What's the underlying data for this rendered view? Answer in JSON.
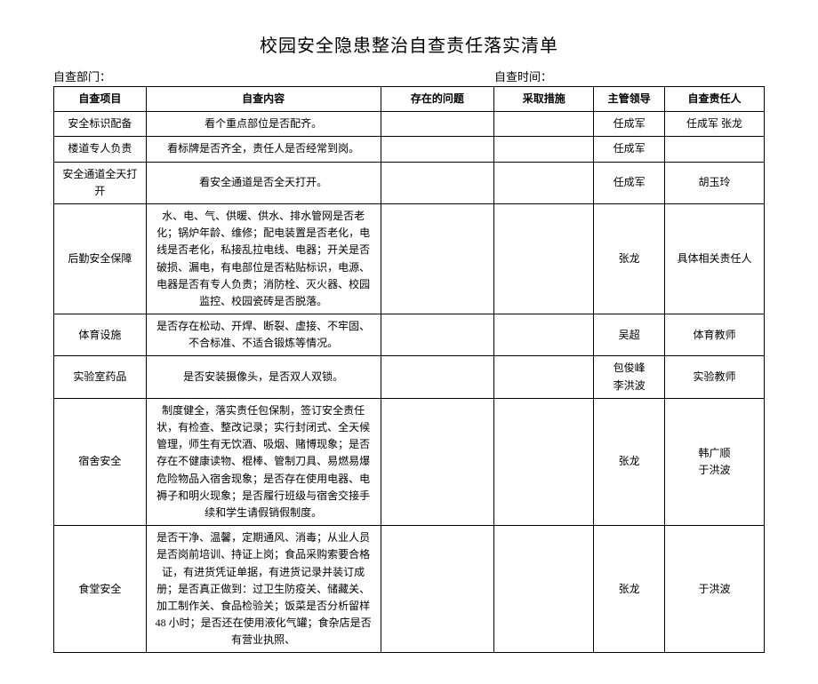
{
  "title": "校园安全隐患整治自查责任落实清单",
  "header": {
    "dept_label": "自查部门：",
    "time_label": "自查时间："
  },
  "columns": {
    "c1": "自查项目",
    "c2": "自查内容",
    "c3": "存在的问题",
    "c4": "采取措施",
    "c5": "主管领导",
    "c6": "自查责任人"
  },
  "rows": [
    {
      "item": "安全标识配备",
      "content": "看个重点部位是否配齐。",
      "problem": "",
      "measure": "",
      "leader": "任成军",
      "person": "任成军 张龙"
    },
    {
      "item": "楼道专人负责",
      "content": "看标牌是否齐全，责任人是否经常到岗。",
      "problem": "",
      "measure": "",
      "leader": "任成军",
      "person": ""
    },
    {
      "item": "安全通道全天打开",
      "content": "看安全通道是否全天打开。",
      "problem": "",
      "measure": "",
      "leader": "任成军",
      "person": "胡玉玲"
    },
    {
      "item": "后勤安全保障",
      "content": "水、电、气、供暖、供水、排水管网是否老化；锅炉年龄、维修；配电装置是否老化，电线是否老化，私接乱拉电线、电器；开关是否破损、漏电，有电部位是否粘贴标识，电源、电器是否有专人负责；消防栓、灭火器、校园监控、校园瓷砖是否脱落。",
      "problem": "",
      "measure": "",
      "leader": "张龙",
      "person": "具体相关责任人"
    },
    {
      "item": "体育设施",
      "content": "是否存在松动、开焊、断裂、虚接、不牢固、不合标准、不适合锻炼等情况。",
      "problem": "",
      "measure": "",
      "leader": "吴超",
      "person": "体育教师"
    },
    {
      "item": "实验室药品",
      "content": "是否安装摄像头，是否双人双锁。",
      "problem": "",
      "measure": "",
      "leader": "包俊峰\n李洪波",
      "person": "实验教师"
    },
    {
      "item": "宿舍安全",
      "content": "制度健全，落实责任包保制，签订安全责任状，有检查、整改记录；实行封闭式、全天候管理，师生有无饮酒、吸烟、赌博现象；是否存在不健康读物、棍棒、管制刀具、易燃易爆危险物品入宿舍现象；是否存在使用电器、电褥子和明火现象；是否履行班级与宿舍交接手续和学生请假销假制度。",
      "problem": "",
      "measure": "",
      "leader": "张龙",
      "person": "韩广顺\n于洪波"
    },
    {
      "item": "食堂安全",
      "content": "是否干净、温馨，定期通风、消毒；从业人员是否岗前培训、持证上岗；食品采购索要合格证，有进货凭证单据，有进货记录并装订成册；是否真正做到：过卫生防疫关、储藏关、加工制作关、食品检验关；饭菜是否分析留样 48 小时；是否还在使用液化气罐；食杂店是否有营业执照、",
      "problem": "",
      "measure": "",
      "leader": "张龙",
      "person": "于洪波"
    }
  ]
}
